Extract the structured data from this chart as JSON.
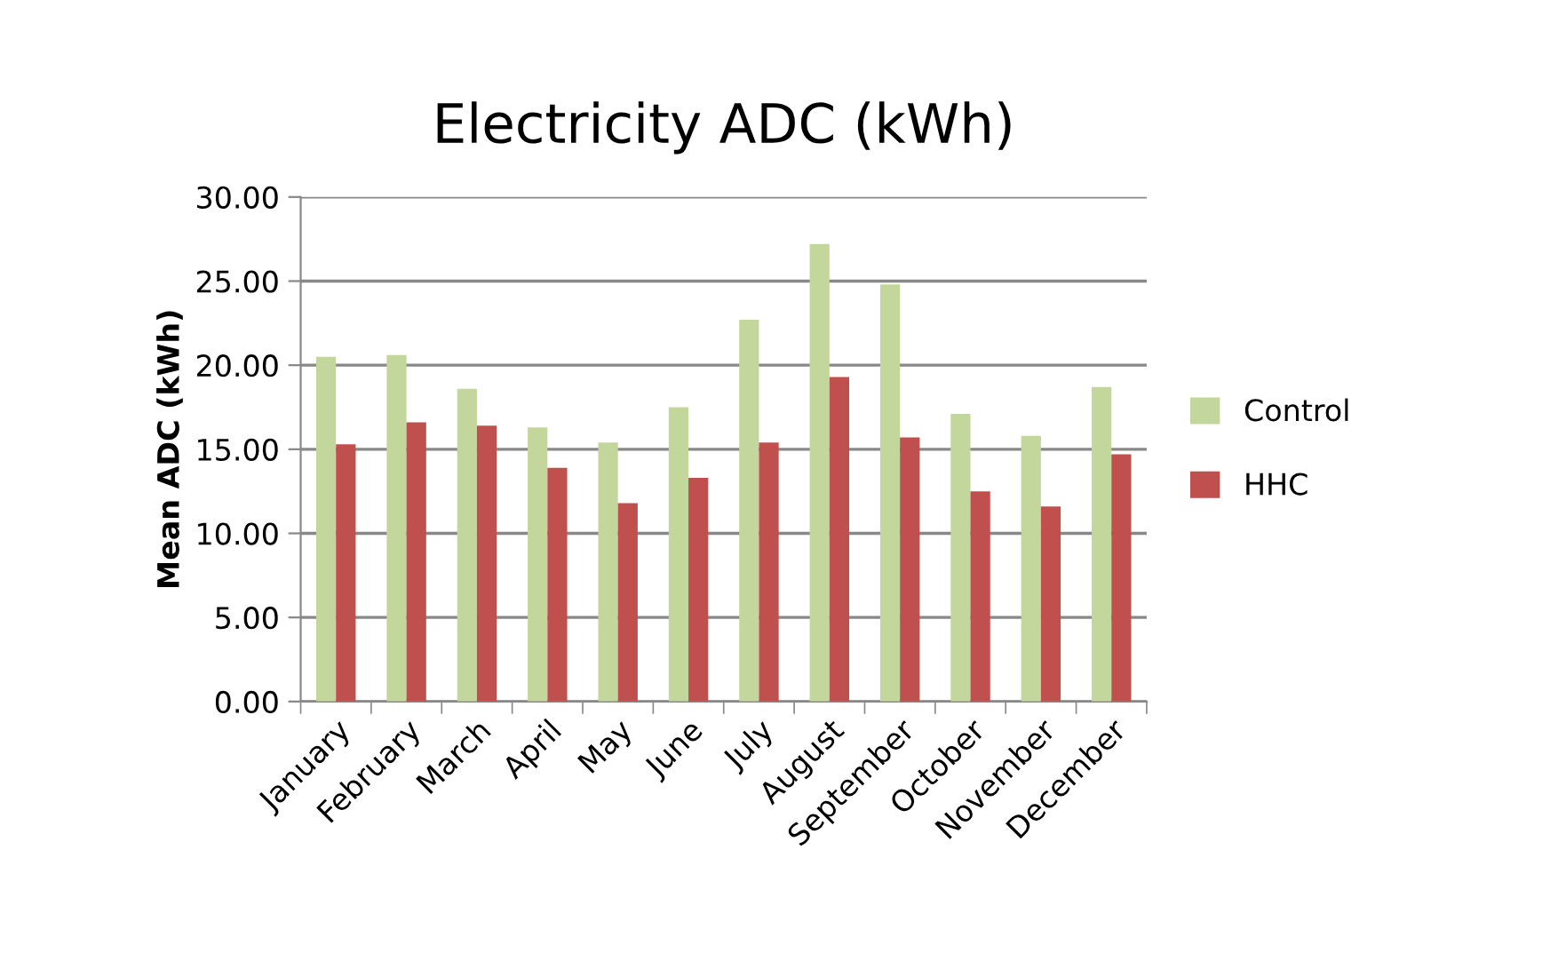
{
  "chart_data": {
    "type": "bar",
    "title": "Electricity ADC (kWh)",
    "ylabel": "Mean ADC (kWh)",
    "categories": [
      "January",
      "February",
      "March",
      "April",
      "May",
      "June",
      "July",
      "August",
      "September",
      "October",
      "November",
      "December"
    ],
    "series": [
      {
        "name": "Control",
        "color": "#c3d69b",
        "values": [
          20.5,
          20.6,
          18.6,
          16.3,
          15.4,
          17.5,
          22.7,
          27.2,
          24.8,
          17.1,
          15.8,
          18.7
        ]
      },
      {
        "name": "HHC",
        "color": "#c0504d",
        "values": [
          15.3,
          16.6,
          16.4,
          13.9,
          11.8,
          13.3,
          15.4,
          19.3,
          15.7,
          12.5,
          11.6,
          14.7
        ]
      }
    ],
    "ylim": [
      0,
      30
    ],
    "yticks": [
      {
        "value": 0,
        "label": "0.00"
      },
      {
        "value": 5,
        "label": "5.00"
      },
      {
        "value": 10,
        "label": "10.00"
      },
      {
        "value": 15,
        "label": "15.00"
      },
      {
        "value": 20,
        "label": "20.00"
      },
      {
        "value": 25,
        "label": "25.00"
      },
      {
        "value": 30,
        "label": "30.00"
      }
    ],
    "grid": "y",
    "legend": "right"
  }
}
